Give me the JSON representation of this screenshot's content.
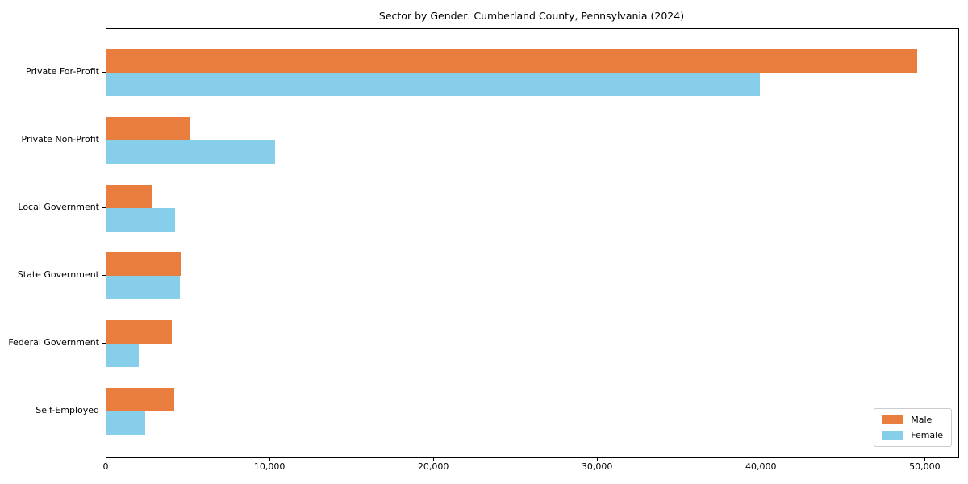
{
  "figure": {
    "title": "Sector by Gender: Cumberland County, Pennsylvania (2024)"
  },
  "chart_data": {
    "type": "bar",
    "orientation": "horizontal",
    "title": "Sector by Gender: Cumberland County, Pennsylvania (2024)",
    "categories": [
      "Private For-Profit",
      "Private Non-Profit",
      "Local Government",
      "State Government",
      "Federal Government",
      "Self-Employed"
    ],
    "series": [
      {
        "name": "Male",
        "color": "#E87D3E",
        "values": [
          49500,
          5100,
          2800,
          4600,
          4000,
          4150
        ]
      },
      {
        "name": "Female",
        "color": "#87CEEB",
        "values": [
          39900,
          10300,
          4200,
          4500,
          1950,
          2350
        ]
      }
    ],
    "xlabel": "",
    "ylabel": "",
    "xlim": [
      0,
      52000
    ],
    "xticks": [
      0,
      10000,
      20000,
      30000,
      40000,
      50000
    ],
    "xtick_labels": [
      "0",
      "10,000",
      "20,000",
      "30,000",
      "40,000",
      "50,000"
    ],
    "grid": false,
    "legend": {
      "position": "lower right"
    }
  }
}
